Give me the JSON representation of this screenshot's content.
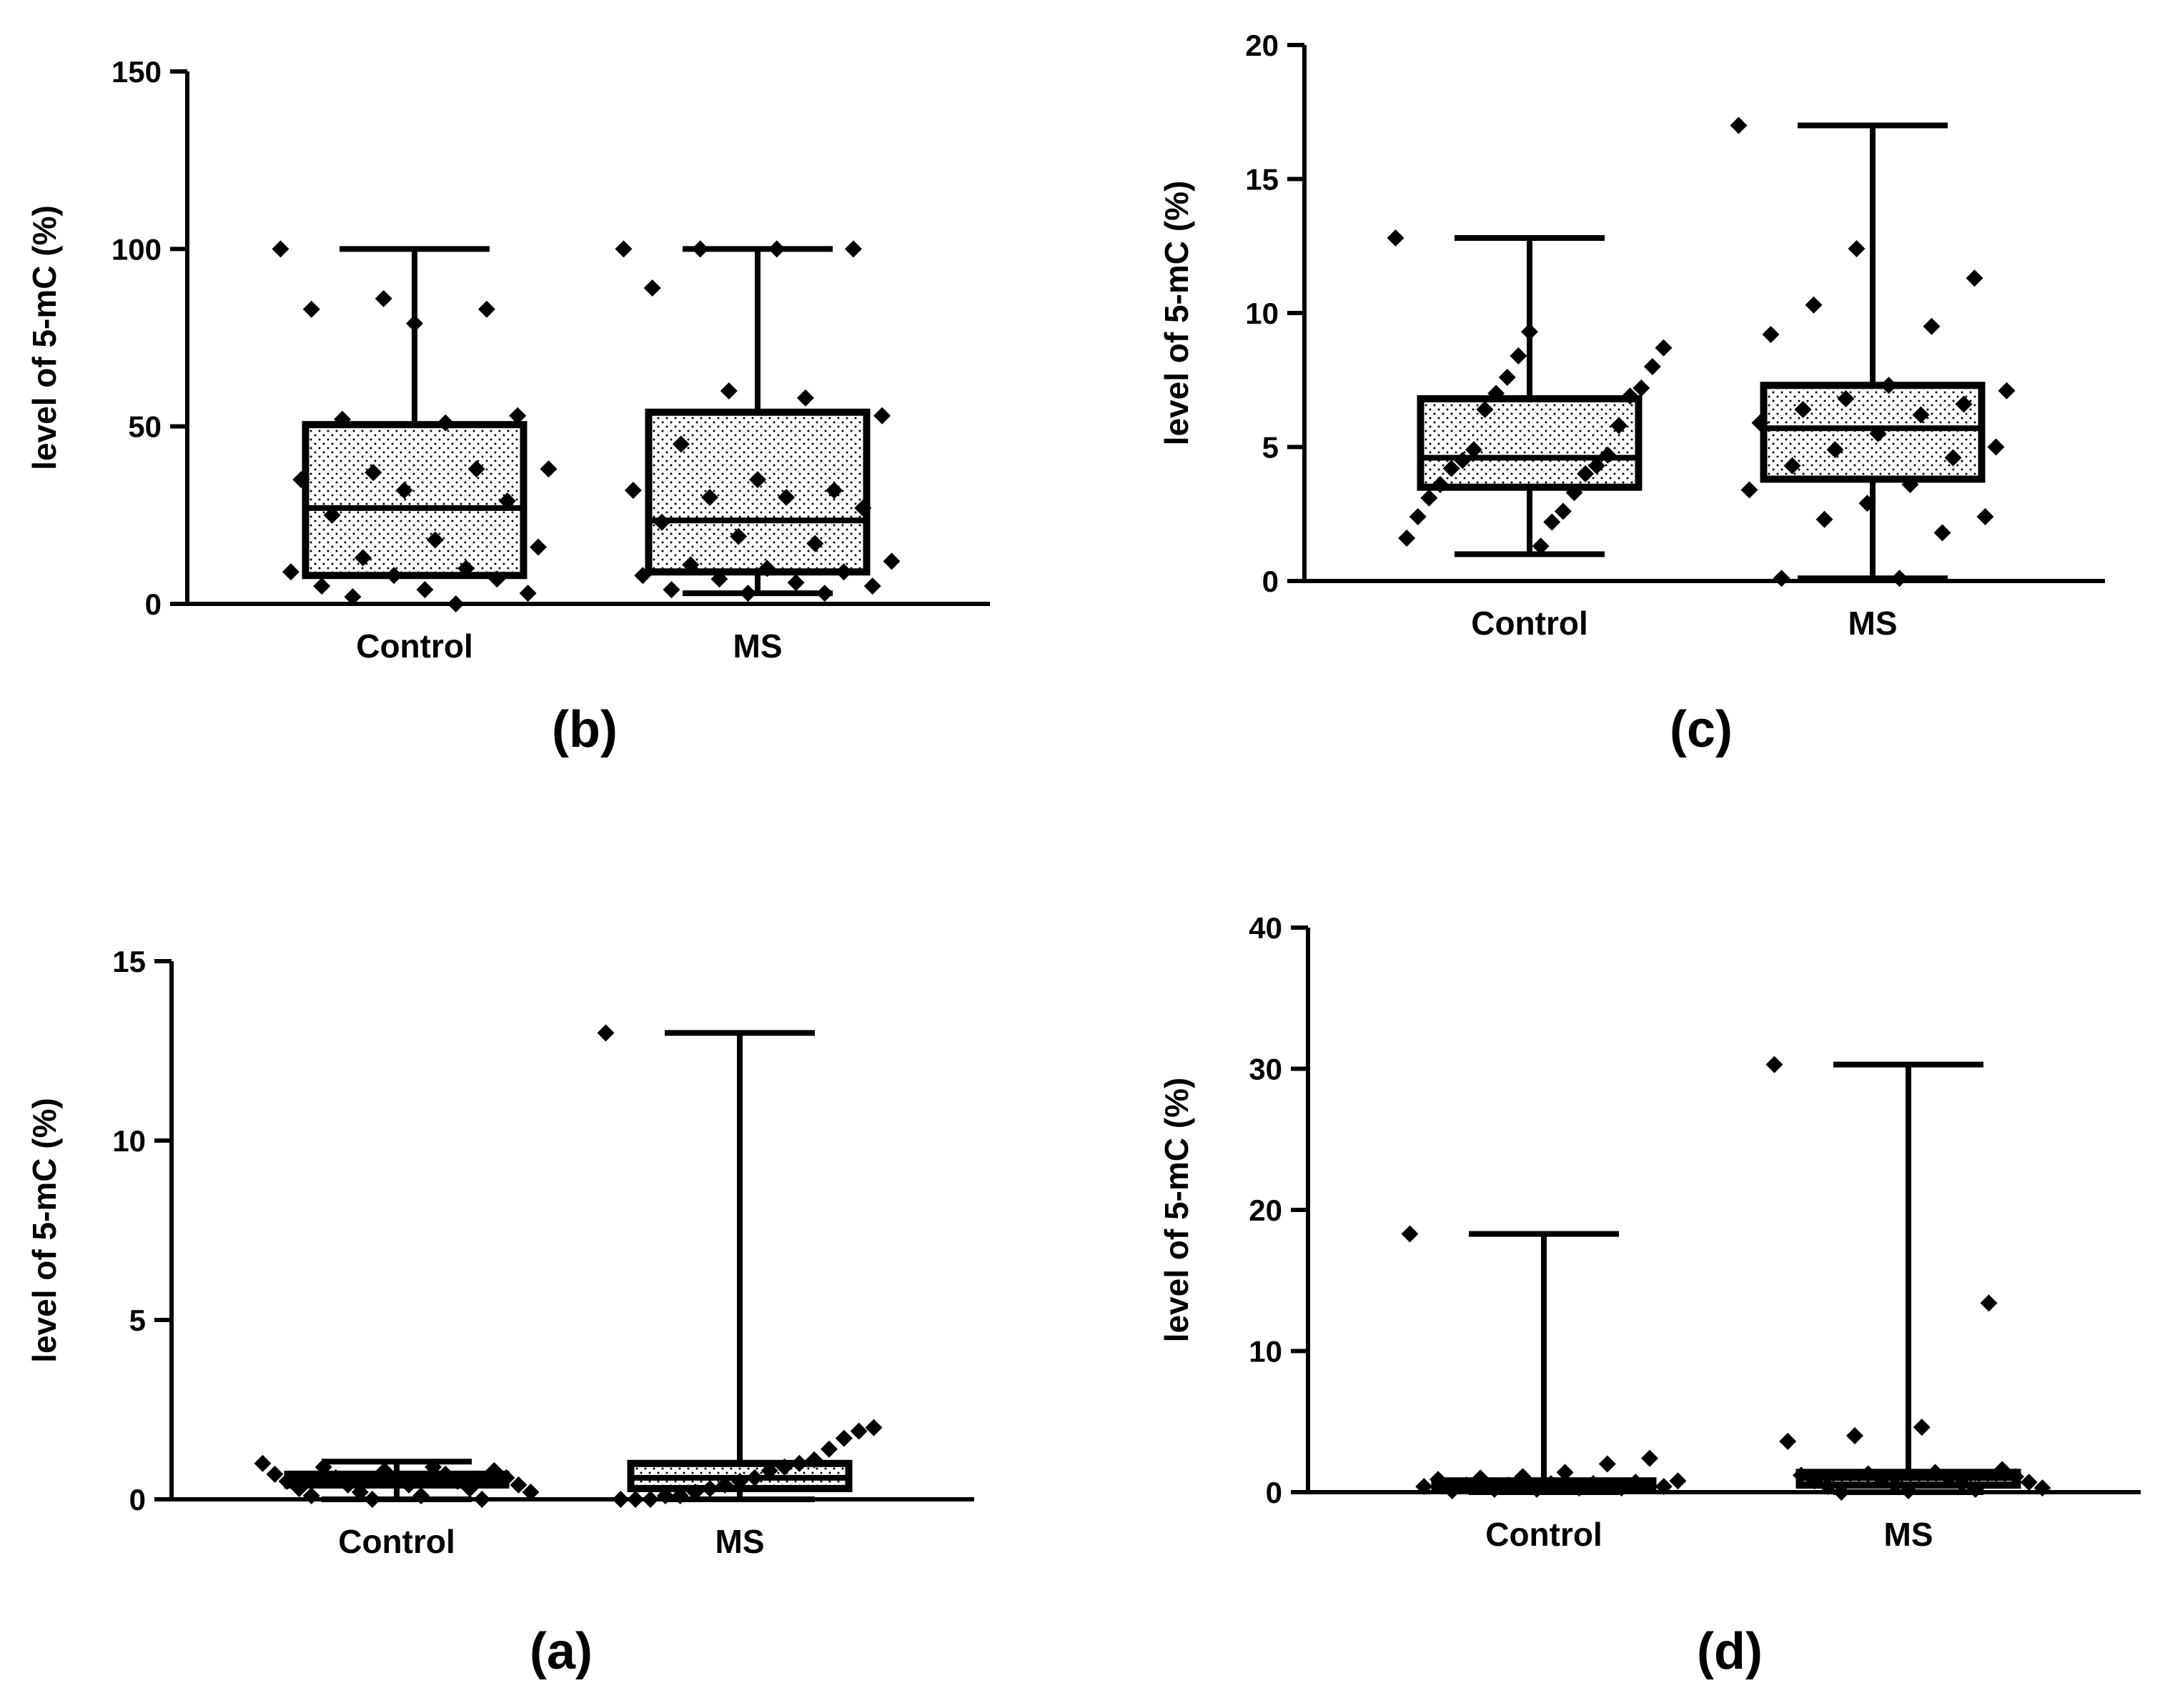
{
  "chart_data": [
    {
      "type": "box",
      "panel_label": "(b)",
      "title": "",
      "xlabel": "",
      "ylabel": "level of 5-mC (%)",
      "ylim": [
        0,
        150
      ],
      "yticks": [
        0,
        50,
        100,
        150
      ],
      "categories": [
        "Control",
        "MS"
      ],
      "boxes": [
        {
          "name": "Control",
          "min": 8,
          "q1": 8,
          "median": 27,
          "q3": 50.5,
          "max": 100,
          "points": [
            100,
            86,
            83,
            83,
            79,
            53,
            52,
            51,
            38,
            37,
            38,
            35,
            32,
            29,
            25,
            18,
            16,
            13,
            10,
            9,
            8,
            7,
            5,
            4,
            3,
            2,
            0
          ]
        },
        {
          "name": "MS",
          "min": 3,
          "q1": 9,
          "median": 23.5,
          "q3": 54,
          "max": 100,
          "points": [
            100,
            100,
            100,
            100,
            89,
            60,
            58,
            53,
            45,
            35,
            32,
            32,
            30,
            30,
            27,
            23,
            19,
            17,
            12,
            11,
            10,
            9,
            8,
            7,
            6,
            5,
            4,
            3,
            3
          ]
        }
      ]
    },
    {
      "type": "box",
      "panel_label": "(c)",
      "title": "",
      "xlabel": "",
      "ylabel": "level of 5-mC (%)",
      "ylim": [
        0,
        20
      ],
      "yticks": [
        0,
        5,
        10,
        15,
        20
      ],
      "categories": [
        "Control",
        "MS"
      ],
      "boxes": [
        {
          "name": "Control",
          "min": 1,
          "q1": 3.5,
          "median": 4.6,
          "q3": 6.8,
          "max": 12.8,
          "points": [
            12.8,
            9.3,
            8.7,
            8.4,
            8.0,
            7.6,
            7.2,
            7.0,
            6.9,
            6.4,
            5.8,
            4.9,
            4.7,
            4.5,
            4.3,
            4.2,
            4.0,
            3.6,
            3.3,
            3.1,
            2.6,
            2.4,
            2.2,
            1.6,
            1.3
          ]
        },
        {
          "name": "MS",
          "min": 0.1,
          "q1": 3.8,
          "median": 5.7,
          "q3": 7.3,
          "max": 17,
          "points": [
            17,
            12.4,
            11.3,
            10.3,
            9.5,
            9.2,
            7.3,
            7.1,
            6.8,
            6.6,
            6.4,
            6.2,
            5.9,
            5.5,
            5.0,
            4.9,
            4.6,
            4.3,
            3.6,
            3.4,
            2.9,
            2.4,
            2.3,
            1.8,
            0.1,
            0.1
          ]
        }
      ]
    },
    {
      "type": "box",
      "panel_label": "(a)",
      "title": "",
      "xlabel": "",
      "ylabel": "level of 5-mC (%)",
      "ylim": [
        0,
        15
      ],
      "yticks": [
        0,
        5,
        10,
        15
      ],
      "categories": [
        "Control",
        "MS"
      ],
      "boxes": [
        {
          "name": "Control",
          "min": 0,
          "q1": 0.4,
          "median": 0.55,
          "q3": 0.7,
          "max": 1.05,
          "points": [
            1.0,
            0.9,
            0.9,
            0.8,
            0.8,
            0.7,
            0.7,
            0.6,
            0.6,
            0.5,
            0.5,
            0.5,
            0.4,
            0.4,
            0.4,
            0.3,
            0.3,
            0.2,
            0.2,
            0.1,
            0.1,
            0.0,
            0.0
          ]
        },
        {
          "name": "MS",
          "min": 0,
          "q1": 0.3,
          "median": 0.6,
          "q3": 1.0,
          "max": 13,
          "points": [
            13,
            2.0,
            1.9,
            1.7,
            1.4,
            1.1,
            1.0,
            0.9,
            0.8,
            0.6,
            0.5,
            0.4,
            0.3,
            0.2,
            0.1,
            0.1,
            0.0,
            0.0,
            0.0
          ]
        }
      ]
    },
    {
      "type": "box",
      "panel_label": "(d)",
      "title": "",
      "xlabel": "",
      "ylabel": "level of 5-mC (%)",
      "ylim": [
        0,
        40
      ],
      "yticks": [
        0,
        10,
        20,
        30,
        40
      ],
      "categories": [
        "Control",
        "MS"
      ],
      "boxes": [
        {
          "name": "Control",
          "min": 0,
          "q1": 0.3,
          "median": 0.5,
          "q3": 0.8,
          "max": 18.3,
          "points": [
            18.3,
            2.4,
            2.0,
            1.4,
            1.1,
            1.0,
            0.9,
            0.8,
            0.7,
            0.6,
            0.6,
            0.5,
            0.5,
            0.4,
            0.4,
            0.3,
            0.3,
            0.2,
            0.2,
            0.1
          ]
        },
        {
          "name": "MS",
          "min": 0,
          "q1": 0.5,
          "median": 1.0,
          "q3": 1.4,
          "max": 30.3,
          "points": [
            30.3,
            13.4,
            4.6,
            4.0,
            3.6,
            1.6,
            1.4,
            1.3,
            1.2,
            1.1,
            1.0,
            0.9,
            0.8,
            0.7,
            0.6,
            0.5,
            0.4,
            0.3,
            0.2,
            0.1,
            0.0
          ]
        }
      ]
    }
  ]
}
